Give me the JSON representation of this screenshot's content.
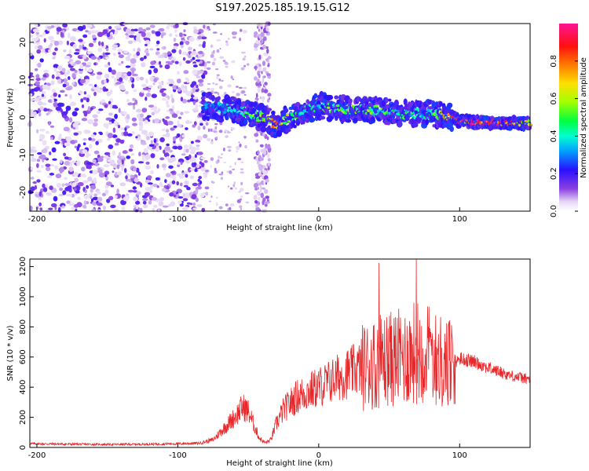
{
  "title": "S197.2025.185.19.15.G12",
  "chart_data": [
    {
      "type": "heatmap",
      "xlabel": "Height of straight line (km)",
      "ylabel": "Frequency (Hz)",
      "xlim": [
        -205,
        150
      ],
      "ylim": [
        -25,
        25
      ],
      "xticks": [
        -200,
        -100,
        0,
        100
      ],
      "yticks": [
        -20,
        -10,
        0,
        10,
        20
      ],
      "colorbar": {
        "label": "Normalized spectral amplitude",
        "range": [
          0.0,
          1.0
        ],
        "ticks": [
          "0.0",
          "0.2",
          "0.4",
          "0.6",
          "0.8"
        ]
      },
      "trace": {
        "x": [
          -80,
          -60,
          -40,
          -30,
          -20,
          -10,
          0,
          20,
          40,
          60,
          80,
          95,
          100,
          120,
          150
        ],
        "frequency": [
          3,
          2,
          0,
          -2,
          0,
          2,
          3,
          2,
          2,
          1,
          1,
          0,
          -1,
          -1.5,
          -1.5
        ],
        "amplitude": [
          0.3,
          0.4,
          0.6,
          0.75,
          0.5,
          0.4,
          0.45,
          0.55,
          0.5,
          0.45,
          0.4,
          0.85,
          0.9,
          0.95,
          0.7
        ]
      },
      "noise_region": {
        "x_from": -205,
        "x_to": -80
      },
      "vertical_band": {
        "x_from": -45,
        "x_to": -35
      },
      "grid": false
    },
    {
      "type": "line",
      "xlabel": "Height of straight line (km)",
      "ylabel": "SNR (10 * v/v)",
      "xlim": [
        -205,
        150
      ],
      "ylim": [
        0,
        1250
      ],
      "xticks": [
        -200,
        -100,
        0,
        100
      ],
      "yticks": [
        0,
        200,
        400,
        600,
        800,
        1000,
        1200
      ],
      "color": "#e8272a",
      "series": [
        {
          "x": [
            -205,
            -180,
            -150,
            -120,
            -100,
            -85,
            -75,
            -65,
            -58,
            -54,
            -50,
            -46,
            -42,
            -38,
            -34,
            -30,
            -25,
            -15,
            0,
            15,
            30,
            45,
            60,
            70,
            80,
            85,
            90,
            95,
            100,
            110,
            120,
            135,
            150
          ],
          "values": [
            25,
            22,
            20,
            22,
            25,
            28,
            50,
            150,
            220,
            270,
            240,
            150,
            60,
            30,
            50,
            160,
            250,
            340,
            400,
            470,
            530,
            580,
            600,
            640,
            620,
            580,
            560,
            560,
            590,
            570,
            530,
            480,
            450
          ]
        }
      ],
      "grid": false
    }
  ]
}
